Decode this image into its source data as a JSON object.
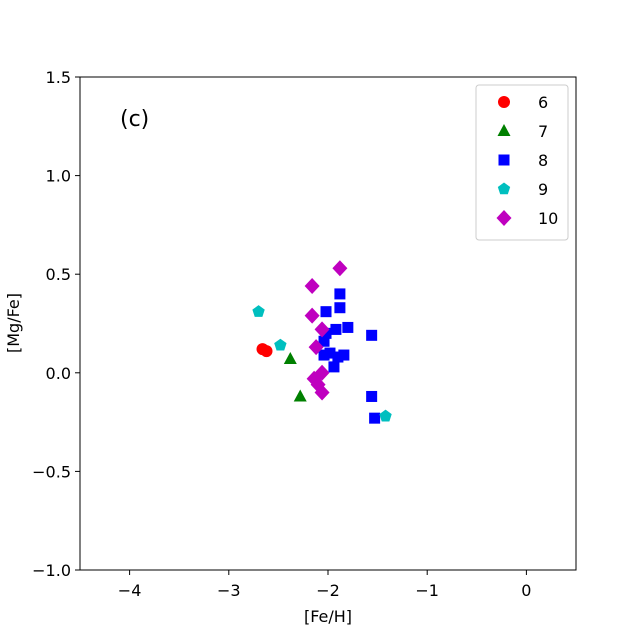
{
  "chart_data": {
    "type": "scatter",
    "panel_label": "(c)",
    "xlabel": "[Fe/H]",
    "ylabel": "[Mg/Fe]",
    "xlim": [
      -4.5,
      0.5
    ],
    "ylim": [
      -1.0,
      1.5
    ],
    "x_ticks": [
      -4,
      -3,
      -2,
      -1,
      0
    ],
    "x_tick_labels": [
      "−4",
      "−3",
      "−2",
      "−1",
      "0"
    ],
    "y_ticks": [
      -1.0,
      -0.5,
      0.0,
      0.5,
      1.0,
      1.5
    ],
    "y_tick_labels": [
      "−1.0",
      "−0.5",
      "0.0",
      "0.5",
      "1.0",
      "1.5"
    ],
    "grid": false,
    "legend_position": "top-right",
    "series": [
      {
        "name": "6",
        "marker": "circle",
        "color": "#ff0000",
        "points": [
          [
            -2.66,
            0.12
          ],
          [
            -2.62,
            0.11
          ]
        ]
      },
      {
        "name": "7",
        "marker": "triangle",
        "color": "#008000",
        "points": [
          [
            -2.38,
            0.07
          ],
          [
            -2.28,
            -0.12
          ]
        ]
      },
      {
        "name": "8",
        "marker": "square",
        "color": "#0000ff",
        "points": [
          [
            -2.02,
            0.31
          ],
          [
            -1.88,
            0.4
          ],
          [
            -1.88,
            0.33
          ],
          [
            -1.8,
            0.23
          ],
          [
            -1.92,
            0.22
          ],
          [
            -2.04,
            0.16
          ],
          [
            -2.02,
            0.2
          ],
          [
            -1.98,
            0.1
          ],
          [
            -2.04,
            0.09
          ],
          [
            -1.9,
            0.08
          ],
          [
            -1.84,
            0.09
          ],
          [
            -1.94,
            0.03
          ],
          [
            -1.56,
            0.19
          ],
          [
            -1.56,
            -0.12
          ],
          [
            -1.53,
            -0.23
          ]
        ]
      },
      {
        "name": "9",
        "marker": "pentagon",
        "color": "#00bfbf",
        "points": [
          [
            -2.7,
            0.31
          ],
          [
            -2.48,
            0.14
          ],
          [
            -1.42,
            -0.22
          ]
        ]
      },
      {
        "name": "10",
        "marker": "diamond",
        "color": "#bf00bf",
        "points": [
          [
            -2.16,
            0.44
          ],
          [
            -1.88,
            0.53
          ],
          [
            -2.16,
            0.29
          ],
          [
            -2.06,
            0.22
          ],
          [
            -2.12,
            0.13
          ],
          [
            -2.06,
            0.0
          ],
          [
            -2.14,
            -0.03
          ],
          [
            -2.1,
            -0.06
          ],
          [
            -2.06,
            -0.1
          ]
        ]
      }
    ]
  }
}
